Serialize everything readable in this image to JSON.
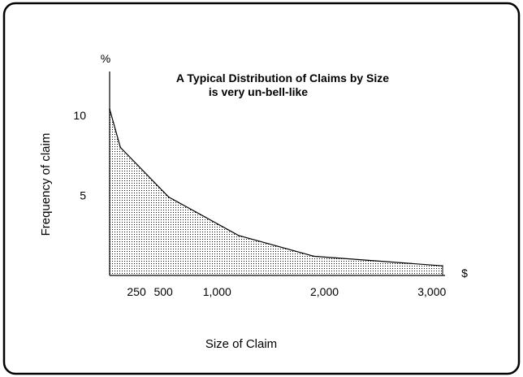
{
  "chart_data": {
    "type": "area",
    "title": "A Typical Distribution of Claims by Size",
    "subtitle": "is very un-bell-like",
    "xlabel": "Size of Claim",
    "ylabel": "Frequency of claim",
    "x_unit": "$",
    "y_unit": "%",
    "x_ticks": [
      {
        "value": 250,
        "label": "250"
      },
      {
        "value": 500,
        "label": "500"
      },
      {
        "value": 1000,
        "label": "1,000"
      },
      {
        "value": 2000,
        "label": "2,000"
      },
      {
        "value": 3000,
        "label": "3,000"
      }
    ],
    "y_ticks": [
      {
        "value": 5,
        "label": "5"
      },
      {
        "value": 10,
        "label": "10"
      }
    ],
    "xlim": [
      0,
      3100
    ],
    "ylim": [
      0,
      13
    ],
    "grid": false,
    "fill": "dotted",
    "series": [
      {
        "x": [
          0,
          100,
          550,
          1200,
          1900,
          3100
        ],
        "y": [
          10.4,
          8.0,
          4.9,
          2.5,
          1.2,
          0.6
        ]
      }
    ]
  }
}
